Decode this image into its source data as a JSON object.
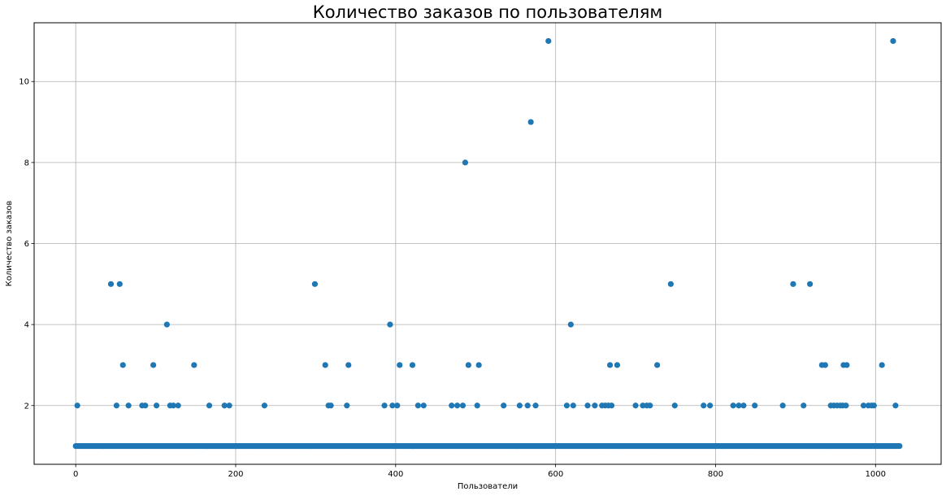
{
  "chart_data": {
    "type": "scatter",
    "title": "Количество заказов по пользователям",
    "xlabel": "Пользователи",
    "ylabel": "Количество заказов",
    "xlim": [
      -52,
      1082
    ],
    "ylim": [
      0.55,
      11.45
    ],
    "x_ticks": [
      0,
      200,
      400,
      600,
      800,
      1000
    ],
    "y_ticks": [
      2,
      4,
      6,
      8,
      10
    ],
    "grid": true,
    "marker_color": "#1f77b4",
    "baseline_value": 1,
    "baseline_x_range": [
      0,
      1030
    ],
    "points": [
      {
        "x": 2,
        "y": 2
      },
      {
        "x": 44,
        "y": 5
      },
      {
        "x": 51,
        "y": 2
      },
      {
        "x": 55,
        "y": 5
      },
      {
        "x": 59,
        "y": 3
      },
      {
        "x": 66,
        "y": 2
      },
      {
        "x": 83,
        "y": 2
      },
      {
        "x": 87,
        "y": 2
      },
      {
        "x": 97,
        "y": 3
      },
      {
        "x": 101,
        "y": 2
      },
      {
        "x": 114,
        "y": 4
      },
      {
        "x": 118,
        "y": 2
      },
      {
        "x": 122,
        "y": 2
      },
      {
        "x": 128,
        "y": 2
      },
      {
        "x": 148,
        "y": 3
      },
      {
        "x": 167,
        "y": 2
      },
      {
        "x": 186,
        "y": 2
      },
      {
        "x": 192,
        "y": 2
      },
      {
        "x": 236,
        "y": 2
      },
      {
        "x": 299,
        "y": 5
      },
      {
        "x": 312,
        "y": 3
      },
      {
        "x": 316,
        "y": 2
      },
      {
        "x": 319,
        "y": 2
      },
      {
        "x": 339,
        "y": 2
      },
      {
        "x": 341,
        "y": 3
      },
      {
        "x": 386,
        "y": 2
      },
      {
        "x": 393,
        "y": 4
      },
      {
        "x": 396,
        "y": 2
      },
      {
        "x": 402,
        "y": 2
      },
      {
        "x": 405,
        "y": 3
      },
      {
        "x": 421,
        "y": 3
      },
      {
        "x": 428,
        "y": 2
      },
      {
        "x": 435,
        "y": 2
      },
      {
        "x": 470,
        "y": 2
      },
      {
        "x": 477,
        "y": 2
      },
      {
        "x": 484,
        "y": 2
      },
      {
        "x": 487,
        "y": 8
      },
      {
        "x": 491,
        "y": 3
      },
      {
        "x": 502,
        "y": 2
      },
      {
        "x": 504,
        "y": 3
      },
      {
        "x": 535,
        "y": 2
      },
      {
        "x": 555,
        "y": 2
      },
      {
        "x": 565,
        "y": 2
      },
      {
        "x": 569,
        "y": 9
      },
      {
        "x": 575,
        "y": 2
      },
      {
        "x": 591,
        "y": 11
      },
      {
        "x": 614,
        "y": 2
      },
      {
        "x": 619,
        "y": 4
      },
      {
        "x": 622,
        "y": 2
      },
      {
        "x": 640,
        "y": 2
      },
      {
        "x": 649,
        "y": 2
      },
      {
        "x": 658,
        "y": 2
      },
      {
        "x": 662,
        "y": 2
      },
      {
        "x": 666,
        "y": 2
      },
      {
        "x": 668,
        "y": 3
      },
      {
        "x": 670,
        "y": 2
      },
      {
        "x": 677,
        "y": 3
      },
      {
        "x": 700,
        "y": 2
      },
      {
        "x": 709,
        "y": 2
      },
      {
        "x": 714,
        "y": 2
      },
      {
        "x": 718,
        "y": 2
      },
      {
        "x": 727,
        "y": 3
      },
      {
        "x": 744,
        "y": 5
      },
      {
        "x": 749,
        "y": 2
      },
      {
        "x": 785,
        "y": 2
      },
      {
        "x": 793,
        "y": 2
      },
      {
        "x": 822,
        "y": 2
      },
      {
        "x": 829,
        "y": 2
      },
      {
        "x": 835,
        "y": 2
      },
      {
        "x": 849,
        "y": 2
      },
      {
        "x": 884,
        "y": 2
      },
      {
        "x": 897,
        "y": 5
      },
      {
        "x": 910,
        "y": 2
      },
      {
        "x": 918,
        "y": 5
      },
      {
        "x": 933,
        "y": 3
      },
      {
        "x": 937,
        "y": 3
      },
      {
        "x": 944,
        "y": 2
      },
      {
        "x": 948,
        "y": 2
      },
      {
        "x": 952,
        "y": 2
      },
      {
        "x": 956,
        "y": 2
      },
      {
        "x": 959,
        "y": 2
      },
      {
        "x": 960,
        "y": 3
      },
      {
        "x": 963,
        "y": 2
      },
      {
        "x": 964,
        "y": 3
      },
      {
        "x": 985,
        "y": 2
      },
      {
        "x": 991,
        "y": 2
      },
      {
        "x": 995,
        "y": 2
      },
      {
        "x": 998,
        "y": 2
      },
      {
        "x": 1008,
        "y": 3
      },
      {
        "x": 1022,
        "y": 11
      },
      {
        "x": 1025,
        "y": 2
      }
    ]
  }
}
